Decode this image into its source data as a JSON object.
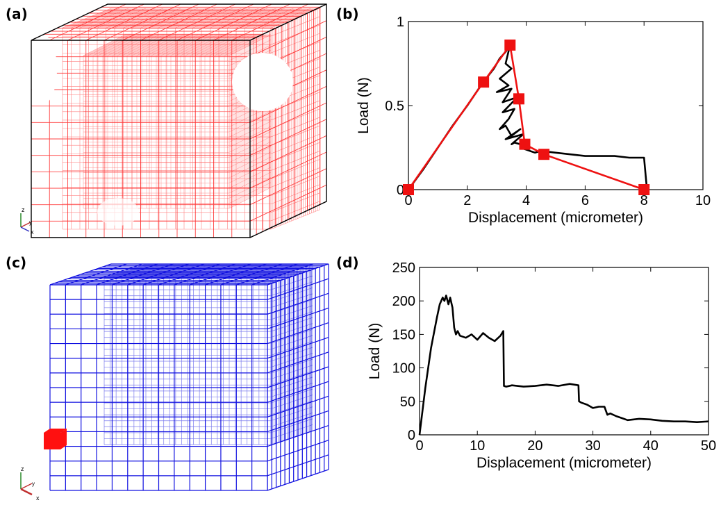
{
  "panels": {
    "a": "(a)",
    "b": "(b)",
    "c": "(c)",
    "d": "(d)"
  },
  "mesh_a": {
    "color": "#ff2020",
    "edge_color": "#000000"
  },
  "mesh_c": {
    "color": "#1010e0",
    "marker_color": "#ff1010"
  },
  "triad_labels": {
    "z": "z",
    "y": "y",
    "x": "x"
  },
  "chart_data": [
    {
      "type": "line",
      "panel": "b",
      "title": "",
      "xlabel": "Displacement (micrometer)",
      "ylabel": "Load (N)",
      "xlim": [
        0,
        10
      ],
      "ylim": [
        0,
        1
      ],
      "xticks": [
        0,
        2,
        4,
        6,
        8,
        10
      ],
      "yticks": [
        0,
        0.5,
        1
      ],
      "ytick_labels": [
        "0",
        "0.5",
        "1"
      ],
      "grid": false,
      "series": [
        {
          "color": "#000000",
          "x": [
            0,
            0.5,
            1.0,
            1.5,
            2.0,
            2.5,
            2.9,
            3.1,
            3.3,
            3.45,
            3.3,
            3.5,
            3.1,
            3.4,
            3.0,
            3.5,
            3.2,
            3.7,
            3.2,
            3.6,
            3.4,
            3.1,
            3.3,
            3.5,
            3.8,
            3.3,
            3.9,
            3.5,
            3.6,
            4.0,
            3.8,
            4.3,
            4.5,
            5.0,
            5.5,
            6.0,
            6.5,
            7.0,
            7.5,
            8.0,
            8.1
          ],
          "y": [
            0,
            0.12,
            0.25,
            0.38,
            0.5,
            0.63,
            0.72,
            0.78,
            0.82,
            0.86,
            0.75,
            0.72,
            0.66,
            0.62,
            0.58,
            0.6,
            0.52,
            0.55,
            0.46,
            0.48,
            0.42,
            0.36,
            0.38,
            0.32,
            0.36,
            0.3,
            0.33,
            0.27,
            0.28,
            0.26,
            0.25,
            0.22,
            0.23,
            0.22,
            0.21,
            0.2,
            0.2,
            0.2,
            0.19,
            0.19,
            0.0
          ]
        },
        {
          "color": "#ee1111",
          "marker": "square",
          "x": [
            0,
            2.55,
            3.45,
            3.75,
            3.95,
            4.6,
            8.0
          ],
          "y": [
            0,
            0.64,
            0.86,
            0.54,
            0.27,
            0.21,
            0.0
          ]
        }
      ]
    },
    {
      "type": "line",
      "panel": "d",
      "title": "",
      "xlabel": "Displacement (micrometer)",
      "ylabel": "Load (N)",
      "xlim": [
        0,
        50
      ],
      "ylim": [
        0,
        250
      ],
      "xticks": [
        0,
        10,
        20,
        30,
        40,
        50
      ],
      "yticks": [
        0,
        50,
        100,
        150,
        200,
        250
      ],
      "ytick_labels": [
        "0",
        "50",
        "100",
        "150",
        "200",
        "250"
      ],
      "grid": false,
      "series": [
        {
          "color": "#000000",
          "x": [
            0,
            1,
            2,
            3,
            3.5,
            4,
            4.3,
            4.6,
            5,
            5.3,
            5.7,
            6,
            6.3,
            6.6,
            7,
            8,
            9,
            10,
            11,
            12,
            13,
            14,
            14.5,
            14.6,
            15,
            16,
            18,
            20,
            22,
            24,
            26,
            27.5,
            27.6,
            28,
            29,
            30,
            31,
            32,
            32.5,
            33,
            34,
            35,
            36,
            38,
            40,
            42,
            44,
            46,
            48,
            50
          ],
          "y": [
            0,
            70,
            130,
            175,
            195,
            205,
            200,
            208,
            195,
            205,
            190,
            160,
            150,
            155,
            148,
            145,
            150,
            142,
            152,
            145,
            140,
            148,
            155,
            73,
            72,
            74,
            72,
            73,
            75,
            73,
            76,
            74,
            50,
            48,
            45,
            40,
            42,
            42,
            30,
            32,
            28,
            25,
            22,
            24,
            23,
            21,
            20,
            20,
            19,
            20
          ]
        }
      ]
    }
  ]
}
